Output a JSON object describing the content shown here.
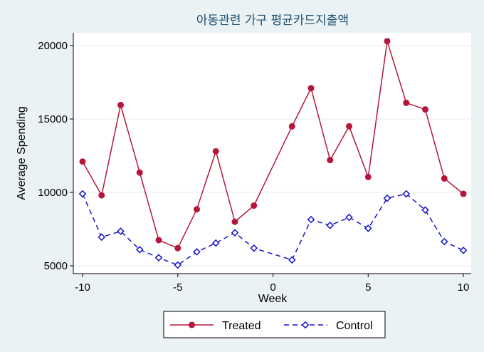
{
  "chart_data": {
    "type": "line",
    "title": "아동관련 가구 평균카드지출액",
    "xlabel": "Week",
    "ylabel": "Average Spending",
    "xlim": [
      -10,
      10
    ],
    "ylim": [
      5000,
      20500
    ],
    "x_ticks": [
      -10,
      -5,
      0,
      5,
      10
    ],
    "y_ticks": [
      5000,
      10000,
      15000,
      20000
    ],
    "grid": true,
    "legend_position": "bottom",
    "colors": {
      "Treated": "#b5173a",
      "Control": "#1414c8",
      "background": "#eaf2f3",
      "plot_bg": "#ffffff"
    },
    "series": [
      {
        "name": "Treated",
        "marker": "circle",
        "line": "solid",
        "x": [
          -10,
          -9,
          -8,
          -7,
          -6,
          -5,
          -4,
          -3,
          -2,
          -1,
          1,
          2,
          3,
          4,
          5,
          6,
          7,
          8,
          9,
          10
        ],
        "values": [
          12100,
          9800,
          15950,
          11350,
          6750,
          6200,
          8850,
          12800,
          8000,
          9100,
          14500,
          17100,
          12200,
          14500,
          11050,
          20300,
          16100,
          15650,
          10950,
          9900
        ]
      },
      {
        "name": "Control",
        "marker": "diamond",
        "line": "dashed",
        "x": [
          -10,
          -9,
          -8,
          -7,
          -6,
          -5,
          -4,
          -3,
          -2,
          -1,
          1,
          2,
          3,
          4,
          5,
          6,
          7,
          8,
          9,
          10
        ],
        "values": [
          9900,
          6950,
          7350,
          6100,
          5550,
          5050,
          5950,
          6550,
          7250,
          6200,
          5400,
          8150,
          7750,
          8300,
          7550,
          9600,
          9900,
          8800,
          6650,
          6050
        ]
      }
    ]
  }
}
